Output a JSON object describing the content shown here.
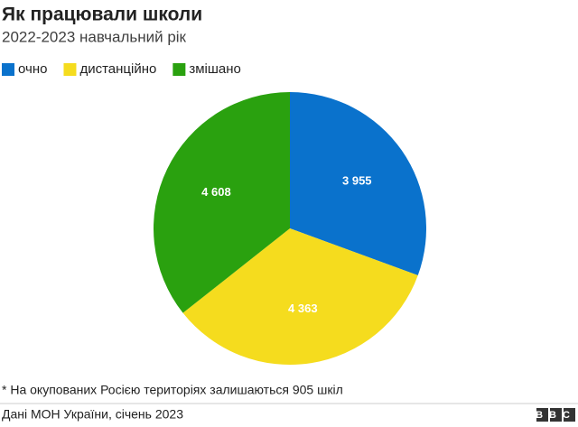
{
  "chart_data": {
    "type": "pie",
    "title": "Як працювали школи",
    "subtitle": "2022-2023 навчальний рік",
    "categories": [
      "очно",
      "дистанційно",
      "змішано"
    ],
    "values": [
      3955,
      4363,
      4608
    ],
    "value_labels": [
      "3 955",
      "4 363",
      "4 608"
    ],
    "colors": [
      "#0a72cc",
      "#f5dc1e",
      "#2aa10f"
    ],
    "footnote": "* На окупованих Росією територіях залишаються 905 шкіл",
    "source": "Дані МОН України, січень 2023",
    "logo": "BBC"
  }
}
